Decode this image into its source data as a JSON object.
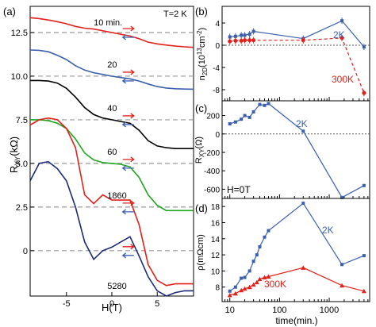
{
  "chart_data": [
    {
      "panel": "(a)",
      "type": "line",
      "xlabel": "H(T)",
      "ylabel": "R_XY(kΩ)",
      "annotation": "T=2 K",
      "xlim": [
        -9,
        9
      ],
      "ylim": [
        -2.6,
        14.0
      ],
      "xticks": [
        -5,
        0,
        5
      ],
      "yticks": [
        0,
        2.5,
        5.0,
        7.5,
        10.0,
        12.5
      ],
      "ytick_labels": [
        "0",
        "2.5",
        "5.0",
        "7.5",
        "10.0",
        "12.5"
      ],
      "series": [
        {
          "name": "10 min.",
          "color": "#e3211b",
          "offset": 12.5,
          "x": [
            -9,
            -8,
            -7,
            -6,
            -5,
            -4,
            -3,
            -2,
            -1,
            0,
            1,
            2,
            3,
            4,
            5,
            6,
            7,
            8,
            9
          ],
          "y": [
            13.35,
            13.3,
            13.22,
            13.12,
            13.0,
            12.85,
            12.75,
            12.7,
            12.6,
            12.5,
            12.4,
            12.3,
            12.15,
            11.95,
            11.85,
            11.78,
            11.72,
            11.68,
            11.65
          ]
        },
        {
          "name": "20",
          "color": "#3a5fae",
          "offset": 10.0,
          "x": [
            -9,
            -8,
            -7,
            -6,
            -5,
            -4,
            -3,
            -2,
            -1,
            0,
            1,
            2,
            3,
            4,
            5,
            6,
            7,
            8,
            9
          ],
          "y": [
            11.5,
            11.48,
            11.4,
            11.2,
            10.95,
            10.6,
            10.35,
            10.2,
            10.1,
            10.0,
            9.92,
            9.85,
            9.72,
            9.55,
            9.4,
            9.32,
            9.28,
            9.26,
            9.25
          ]
        },
        {
          "name": "40",
          "color": "#000000",
          "offset": 7.5,
          "x": [
            -9,
            -8,
            -7,
            -6,
            -5,
            -4,
            -3,
            -2,
            -1,
            0,
            1,
            2,
            3,
            4,
            5,
            6,
            7,
            8,
            9
          ],
          "y": [
            9.75,
            9.75,
            9.72,
            9.6,
            9.3,
            8.8,
            8.2,
            7.8,
            7.6,
            7.5,
            7.4,
            7.3,
            6.9,
            6.3,
            6.0,
            5.9,
            5.85,
            5.85,
            5.85
          ]
        },
        {
          "name": "60",
          "color": "#1ea61e",
          "offset": 5.0,
          "x": [
            -9,
            -8,
            -7,
            -6,
            -5,
            -4,
            -3,
            -2,
            -1,
            0,
            1,
            2,
            3,
            4,
            5,
            6,
            7,
            8,
            9
          ],
          "y": [
            7.5,
            7.5,
            7.45,
            7.3,
            7.0,
            6.4,
            5.6,
            5.2,
            5.05,
            5.0,
            4.95,
            4.8,
            4.2,
            3.2,
            2.6,
            2.3,
            2.3,
            2.3,
            2.3
          ]
        },
        {
          "name": "1860",
          "color": "#e3211b",
          "offset": 2.5,
          "x": [
            -9,
            -8,
            -7,
            -6,
            -5,
            -4,
            -3,
            -2,
            -1,
            0,
            1,
            2,
            3,
            4,
            5,
            6,
            7,
            8,
            9
          ],
          "y": [
            7.2,
            7.5,
            7.6,
            7.5,
            7.0,
            5.9,
            3.2,
            2.7,
            3.2,
            2.9,
            2.9,
            2.9,
            1.5,
            -0.8,
            -1.7,
            -2.0,
            -1.9,
            -1.9,
            -1.9
          ]
        },
        {
          "name": "5280",
          "color": "#1d2a78",
          "offset": 0,
          "x": [
            -9,
            -8,
            -7,
            -6,
            -5,
            -4,
            -3,
            -2,
            -1,
            0,
            1,
            2,
            3,
            4,
            5,
            6,
            7,
            8,
            9
          ],
          "y": [
            4.0,
            5.0,
            5.1,
            4.7,
            4.0,
            2.5,
            0.5,
            -0.5,
            0.0,
            0.2,
            0.5,
            0.8,
            -0.3,
            -1.5,
            -2.3,
            -2.6,
            -2.4,
            -2.3,
            -2.3
          ]
        }
      ]
    },
    {
      "panel": "(b)",
      "type": "line",
      "xscale": "log",
      "ylabel": "n_2D(10^13cm^-2)",
      "xlim": [
        7,
        6500
      ],
      "ylim": [
        -10,
        7
      ],
      "yticks": [
        -8,
        -4,
        0,
        4
      ],
      "series": [
        {
          "name": "2K",
          "color": "#3a5fae",
          "linestyle": "solid",
          "marker": "square",
          "x": [
            10,
            13,
            17,
            20,
            25,
            30,
            300,
            1800,
            5000
          ],
          "y": [
            1.5,
            1.6,
            1.8,
            1.8,
            2.0,
            2.5,
            1.2,
            4.4,
            -0.3
          ]
        },
        {
          "name": "300K",
          "color": "#e3211b",
          "linestyle": "dashed",
          "marker": "circle",
          "x": [
            10,
            13,
            17,
            20,
            25,
            30,
            300,
            1800,
            5000
          ],
          "y": [
            0.7,
            0.8,
            0.8,
            0.9,
            0.9,
            0.9,
            0.9,
            1.3,
            -8.6
          ]
        }
      ]
    },
    {
      "panel": "(c)",
      "type": "line",
      "xscale": "log",
      "ylabel": "R_XY(Ω)",
      "annotation": "H=0T",
      "xlim": [
        7,
        6500
      ],
      "ylim": [
        -700,
        360
      ],
      "yticks": [
        -600,
        -400,
        -200,
        0,
        200
      ],
      "series": [
        {
          "name": "2K",
          "color": "#3a5fae",
          "marker": "square",
          "x": [
            10,
            13,
            17,
            20,
            25,
            30,
            40,
            50,
            60,
            300,
            1800,
            5000
          ],
          "y": [
            110,
            130,
            160,
            200,
            180,
            240,
            320,
            310,
            330,
            30,
            -690,
            -560
          ]
        }
      ]
    },
    {
      "panel": "(d)",
      "type": "line",
      "xscale": "log",
      "xlabel": "time(min.)",
      "ylabel": "ρ(mΩcm)",
      "xlim": [
        7,
        6500
      ],
      "ylim": [
        6.2,
        19
      ],
      "xticks": [
        10,
        100,
        1000
      ],
      "yticks": [
        8,
        10,
        12,
        14,
        16,
        18
      ],
      "series": [
        {
          "name": "2K",
          "color": "#3a5fae",
          "marker": "square",
          "x": [
            10,
            13,
            17,
            20,
            25,
            30,
            35,
            40,
            50,
            60,
            300,
            1800,
            5000
          ],
          "y": [
            7.5,
            8.0,
            9.1,
            9.2,
            10.0,
            11.2,
            12.0,
            13.0,
            14.2,
            15.0,
            18.4,
            10.8,
            11.9
          ]
        },
        {
          "name": "300K",
          "color": "#e3211b",
          "marker": "triangle",
          "x": [
            10,
            13,
            17,
            20,
            25,
            30,
            35,
            40,
            50,
            60,
            300,
            1800,
            5000
          ],
          "y": [
            7.0,
            7.2,
            7.6,
            7.8,
            8.0,
            8.3,
            8.6,
            9.0,
            9.2,
            9.3,
            10.4,
            8.2,
            7.5
          ]
        }
      ]
    }
  ]
}
